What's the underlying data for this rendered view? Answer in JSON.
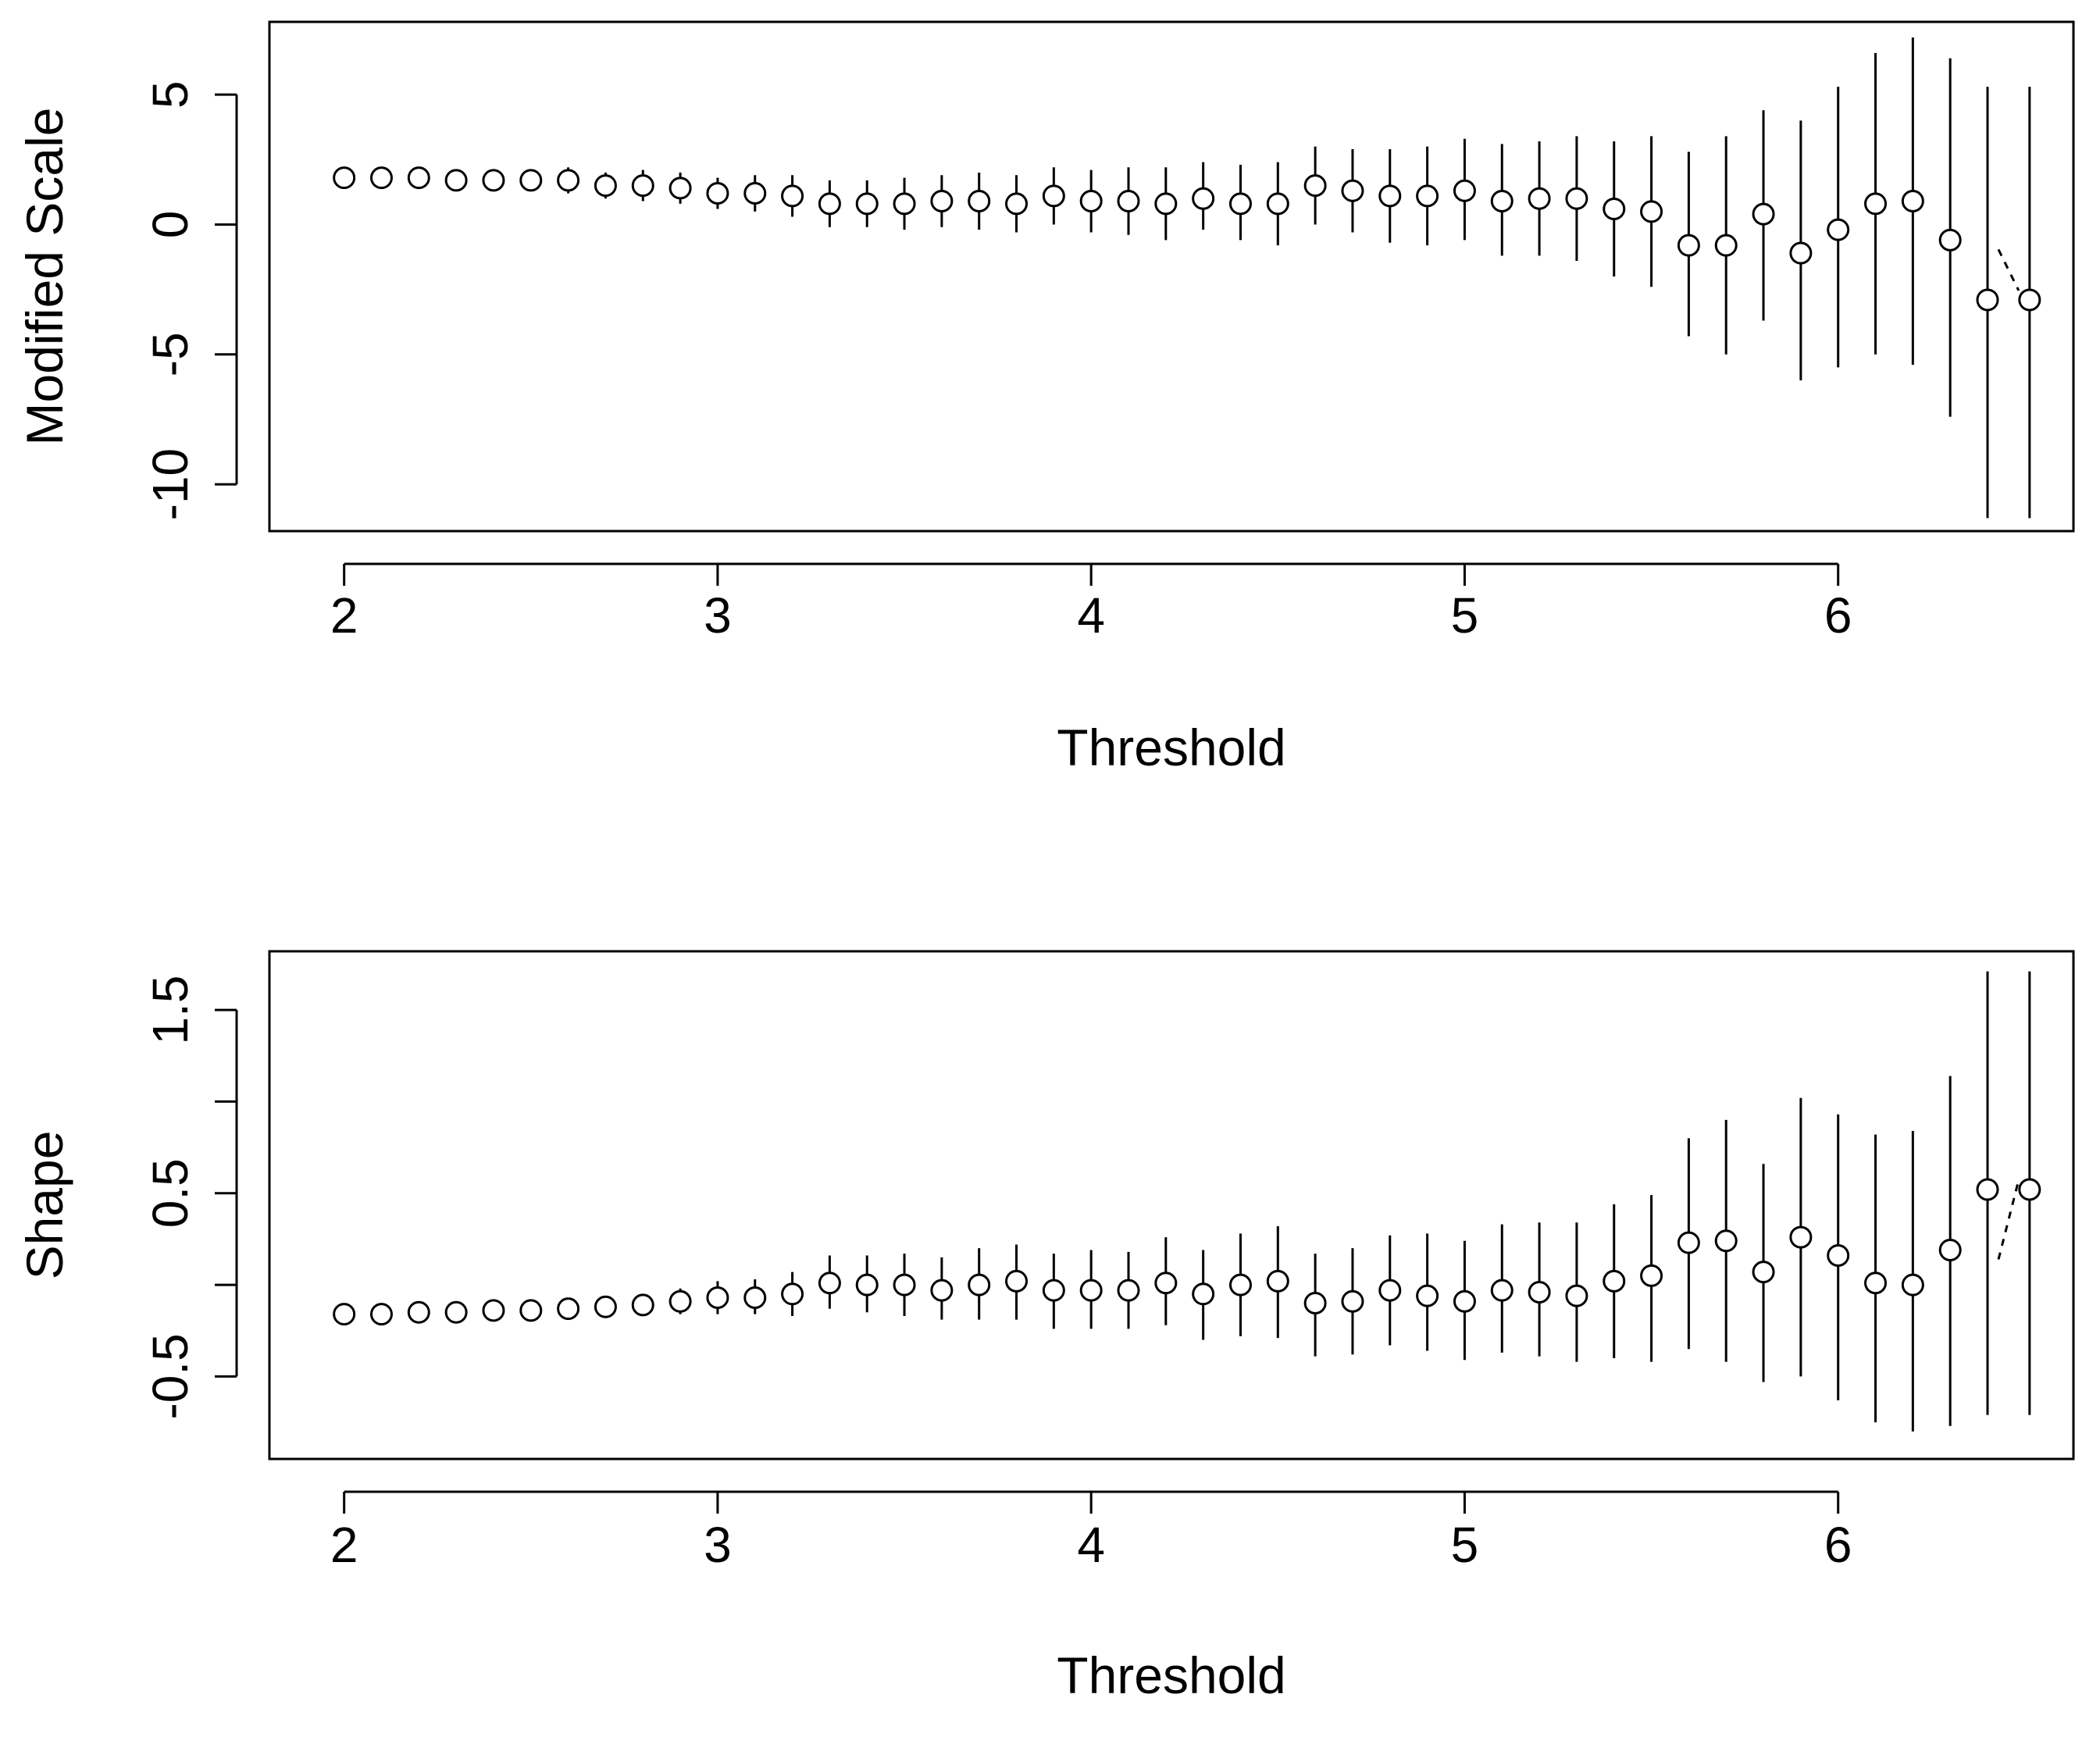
{
  "chart_data": [
    {
      "type": "scatter",
      "subtype": "point-with-error-bars",
      "xlabel": "Threshold",
      "ylabel": "Modified Scale",
      "xlim": [
        1.8,
        6.63
      ],
      "ylim": [
        -11.8,
        7.8
      ],
      "xticks": [
        2,
        3,
        4,
        5,
        6
      ],
      "yticks": [
        -10,
        -5,
        0,
        5
      ],
      "xtick_labels": [
        "2",
        "3",
        "4",
        "5",
        "6"
      ],
      "ytick_labels": [
        "-10",
        "-5",
        "0",
        "5"
      ],
      "x": [
        2.0,
        2.1,
        2.2,
        2.3,
        2.4,
        2.5,
        2.6,
        2.7,
        2.8,
        2.9,
        3.0,
        3.1,
        3.2,
        3.3,
        3.4,
        3.5,
        3.6,
        3.7,
        3.8,
        3.9,
        4.0,
        4.1,
        4.2,
        4.3,
        4.4,
        4.5,
        4.6,
        4.7,
        4.8,
        4.9,
        5.0,
        5.1,
        5.2,
        5.3,
        5.4,
        5.5,
        5.6,
        5.7,
        5.8,
        5.9,
        6.0,
        6.1,
        6.2,
        6.3,
        6.4,
        6.5
      ],
      "y": [
        1.8,
        1.8,
        1.8,
        1.7,
        1.7,
        1.7,
        1.7,
        1.5,
        1.5,
        1.4,
        1.2,
        1.2,
        1.1,
        0.8,
        0.8,
        0.8,
        0.9,
        0.9,
        0.8,
        1.1,
        0.9,
        0.9,
        0.8,
        1.0,
        0.8,
        0.8,
        1.5,
        1.3,
        1.1,
        1.1,
        1.3,
        0.9,
        1.0,
        1.0,
        0.6,
        0.5,
        -0.8,
        -0.8,
        0.4,
        -1.1,
        -0.2,
        0.8,
        0.9,
        -0.6,
        -2.9,
        -2.9
      ],
      "lower": [
        1.4,
        1.4,
        1.4,
        1.3,
        1.3,
        1.3,
        1.2,
        1.0,
        0.9,
        0.8,
        0.6,
        0.5,
        0.3,
        -0.1,
        -0.1,
        -0.2,
        -0.1,
        -0.2,
        -0.3,
        0.0,
        -0.3,
        -0.4,
        -0.6,
        -0.2,
        -0.6,
        -0.8,
        0.0,
        -0.3,
        -0.7,
        -0.8,
        -0.6,
        -1.2,
        -1.2,
        -1.4,
        -2.0,
        -2.4,
        -4.3,
        -5.0,
        -3.7,
        -6.0,
        -5.5,
        -5.0,
        -5.4,
        -7.4,
        -11.3,
        -11.3
      ],
      "upper": [
        2.2,
        2.2,
        2.2,
        2.1,
        2.1,
        2.1,
        2.2,
        2.0,
        2.1,
        2.0,
        1.8,
        1.9,
        1.9,
        1.7,
        1.7,
        1.8,
        1.9,
        2.0,
        1.9,
        2.2,
        2.1,
        2.2,
        2.2,
        2.4,
        2.3,
        2.4,
        3.0,
        2.9,
        2.9,
        3.0,
        3.3,
        3.1,
        3.2,
        3.4,
        3.2,
        3.4,
        2.8,
        3.4,
        4.4,
        4.0,
        5.3,
        6.6,
        7.2,
        6.4,
        5.3,
        5.3
      ],
      "dashed_connector": [
        [
          6.4,
          -0.6
        ],
        [
          6.5,
          -2.9
        ]
      ]
    },
    {
      "type": "scatter",
      "subtype": "point-with-error-bars",
      "xlabel": "Threshold",
      "ylabel": "Shape",
      "xlim": [
        1.8,
        6.63
      ],
      "ylim": [
        -0.95,
        1.82
      ],
      "xticks": [
        2,
        3,
        4,
        5,
        6
      ],
      "yticks": [
        -0.5,
        0.5,
        1.5
      ],
      "yticks_minor": [
        0,
        1
      ],
      "xtick_labels": [
        "2",
        "3",
        "4",
        "5",
        "6"
      ],
      "ytick_labels": [
        "-0.5",
        "0.5",
        "1.5"
      ],
      "x": [
        2.0,
        2.1,
        2.2,
        2.3,
        2.4,
        2.5,
        2.6,
        2.7,
        2.8,
        2.9,
        3.0,
        3.1,
        3.2,
        3.3,
        3.4,
        3.5,
        3.6,
        3.7,
        3.8,
        3.9,
        4.0,
        4.1,
        4.2,
        4.3,
        4.4,
        4.5,
        4.6,
        4.7,
        4.8,
        4.9,
        5.0,
        5.1,
        5.2,
        5.3,
        5.4,
        5.5,
        5.6,
        5.7,
        5.8,
        5.9,
        6.0,
        6.1,
        6.2,
        6.3,
        6.4,
        6.5
      ],
      "y": [
        -0.16,
        -0.16,
        -0.15,
        -0.15,
        -0.14,
        -0.14,
        -0.13,
        -0.12,
        -0.11,
        -0.09,
        -0.07,
        -0.07,
        -0.05,
        0.01,
        0.0,
        0.0,
        -0.03,
        0.0,
        0.02,
        -0.03,
        -0.03,
        -0.03,
        0.01,
        -0.05,
        0.0,
        0.02,
        -0.1,
        -0.09,
        -0.03,
        -0.06,
        -0.09,
        -0.03,
        -0.04,
        -0.06,
        0.02,
        0.05,
        0.23,
        0.24,
        0.07,
        0.26,
        0.16,
        0.01,
        0.0,
        0.19,
        0.52,
        0.52
      ],
      "lower": [
        -0.19,
        -0.19,
        -0.19,
        -0.19,
        -0.18,
        -0.18,
        -0.17,
        -0.17,
        -0.17,
        -0.16,
        -0.16,
        -0.16,
        -0.17,
        -0.13,
        -0.15,
        -0.17,
        -0.19,
        -0.19,
        -0.19,
        -0.24,
        -0.24,
        -0.24,
        -0.22,
        -0.3,
        -0.28,
        -0.29,
        -0.39,
        -0.38,
        -0.33,
        -0.36,
        -0.41,
        -0.37,
        -0.39,
        -0.42,
        -0.4,
        -0.42,
        -0.35,
        -0.42,
        -0.53,
        -0.5,
        -0.63,
        -0.75,
        -0.8,
        -0.77,
        -0.71,
        -0.71
      ],
      "upper": [
        -0.13,
        -0.13,
        -0.12,
        -0.11,
        -0.1,
        -0.1,
        -0.09,
        -0.07,
        -0.05,
        -0.02,
        0.02,
        0.03,
        0.07,
        0.16,
        0.16,
        0.17,
        0.15,
        0.2,
        0.22,
        0.17,
        0.19,
        0.18,
        0.26,
        0.19,
        0.28,
        0.32,
        0.17,
        0.2,
        0.27,
        0.28,
        0.24,
        0.33,
        0.34,
        0.34,
        0.44,
        0.49,
        0.8,
        0.9,
        0.66,
        1.02,
        0.93,
        0.82,
        0.84,
        1.14,
        1.71,
        1.71
      ],
      "dashed_connector": [
        [
          6.4,
          0.19
        ],
        [
          6.5,
          0.52
        ]
      ]
    }
  ]
}
